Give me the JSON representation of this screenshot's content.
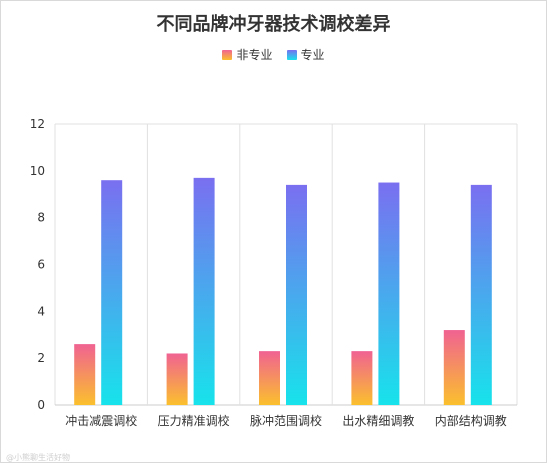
{
  "chart_data": {
    "type": "bar",
    "title": "不同品牌冲牙器技术调校差异",
    "categories": [
      "冲击减震调校",
      "压力精准调校",
      "脉冲范围调校",
      "出水精细调教",
      "内部结构调教"
    ],
    "series": [
      {
        "name": "非专业",
        "values": [
          2.6,
          2.2,
          2.3,
          2.3,
          3.2
        ],
        "colors": [
          "#f06292",
          "#fbc02d"
        ]
      },
      {
        "name": "专业",
        "values": [
          9.6,
          9.7,
          9.4,
          9.5,
          9.4
        ],
        "colors": [
          "#7a6ff0",
          "#17e3eb"
        ]
      }
    ],
    "ylim": [
      0,
      12
    ],
    "yticks": [
      0,
      2,
      4,
      6,
      8,
      10,
      12
    ],
    "grid": "vertical",
    "legend_position": "top-center",
    "watermark": "@小熊聊生活好物"
  }
}
